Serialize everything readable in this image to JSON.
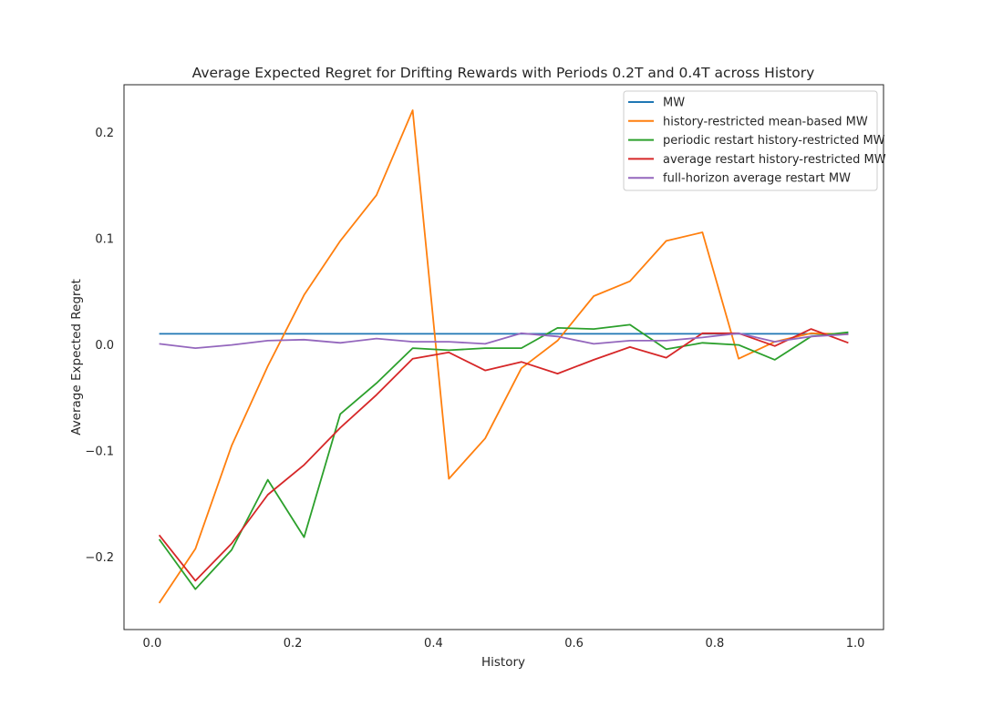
{
  "chart_data": {
    "type": "line",
    "title": "Average Expected Regret for Drifting Rewards with Periods 0.2T and 0.4T across History",
    "xlabel": "History",
    "ylabel": "Average Expected Regret",
    "xlim": [
      -0.04,
      1.04
    ],
    "ylim": [
      -0.268,
      0.245
    ],
    "xticks": [
      0.0,
      0.2,
      0.4,
      0.6,
      0.8,
      1.0
    ],
    "xtick_labels": [
      "0.0",
      "0.2",
      "0.4",
      "0.6",
      "0.8",
      "1.0"
    ],
    "yticks": [
      -0.2,
      -0.1,
      0.0,
      0.1,
      0.2
    ],
    "ytick_labels": [
      "−0.2",
      "−0.1",
      "0.0",
      "0.1",
      "0.2"
    ],
    "grid": false,
    "legend_position": "top-right",
    "x": [
      0.01,
      0.0615,
      0.113,
      0.1645,
      0.216,
      0.2675,
      0.319,
      0.3705,
      0.422,
      0.4735,
      0.525,
      0.5765,
      0.628,
      0.6795,
      0.731,
      0.7825,
      0.834,
      0.8855,
      0.937,
      0.99
    ],
    "series": [
      {
        "name": "MW",
        "color": "#1f77b4",
        "values": [
          0.0105,
          0.0105,
          0.0105,
          0.0105,
          0.0105,
          0.0105,
          0.0105,
          0.0105,
          0.0105,
          0.0105,
          0.0105,
          0.0105,
          0.0105,
          0.0105,
          0.0105,
          0.0105,
          0.0105,
          0.0105,
          0.0105,
          0.0105
        ]
      },
      {
        "name": "history-restricted mean-based MW",
        "color": "#ff7f0e",
        "values": [
          -0.243,
          -0.192,
          -0.095,
          -0.02,
          0.047,
          0.098,
          0.141,
          0.221,
          -0.126,
          -0.088,
          -0.022,
          0.004,
          0.046,
          0.06,
          0.098,
          0.106,
          -0.013,
          0.003,
          0.011,
          0.01
        ]
      },
      {
        "name": "periodic restart history-restricted MW",
        "color": "#2ca02c",
        "values": [
          -0.183,
          -0.23,
          -0.193,
          -0.127,
          -0.181,
          -0.065,
          -0.036,
          -0.003,
          -0.005,
          -0.003,
          -0.003,
          0.016,
          0.015,
          0.019,
          -0.004,
          0.002,
          0.0,
          -0.014,
          0.008,
          0.012
        ]
      },
      {
        "name": "average restart history-restricted MW",
        "color": "#d62728",
        "values": [
          -0.179,
          -0.222,
          -0.187,
          -0.141,
          -0.113,
          -0.078,
          -0.047,
          -0.013,
          -0.007,
          -0.024,
          -0.016,
          -0.027,
          -0.014,
          -0.002,
          -0.012,
          0.011,
          0.011,
          -0.001,
          0.015,
          0.002
        ]
      },
      {
        "name": "full-horizon average restart MW",
        "color": "#9467bd",
        "values": [
          0.001,
          -0.003,
          0.0,
          0.004,
          0.005,
          0.002,
          0.006,
          0.003,
          0.003,
          0.001,
          0.011,
          0.008,
          0.001,
          0.004,
          0.004,
          0.007,
          0.011,
          0.003,
          0.008,
          0.01
        ]
      }
    ]
  }
}
